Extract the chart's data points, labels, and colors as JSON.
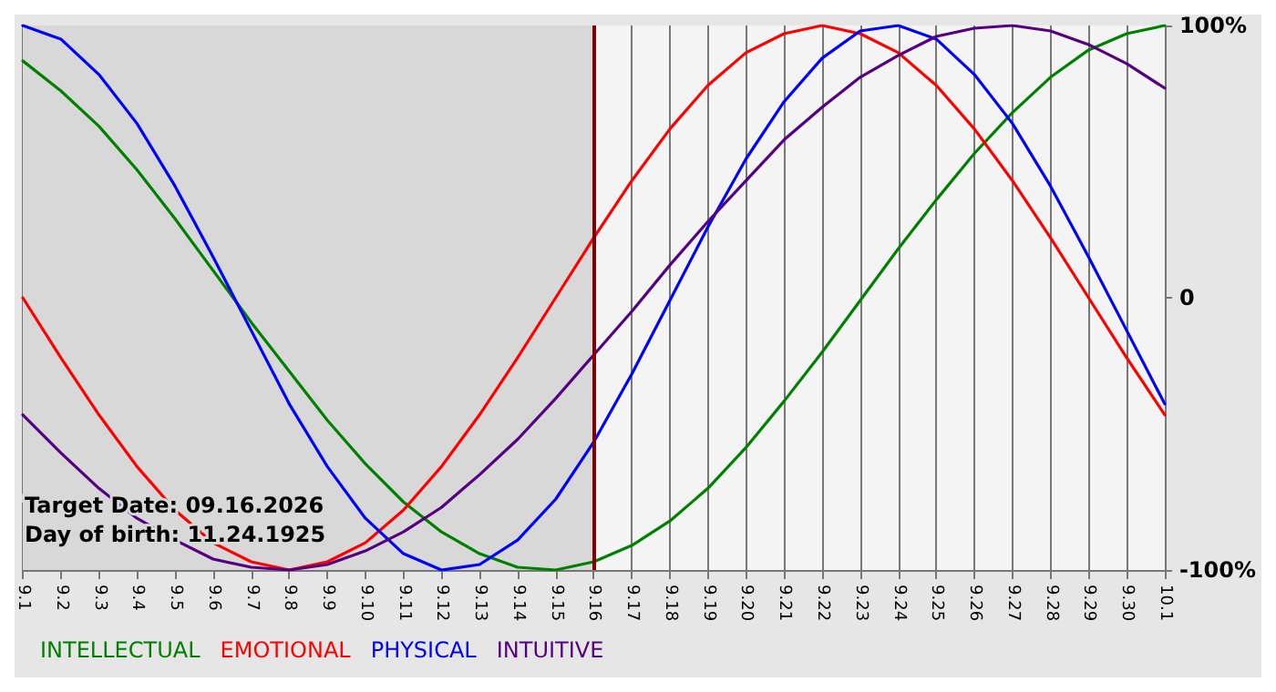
{
  "chart_data": {
    "type": "line",
    "categories": [
      "9.1",
      "9.2",
      "9.3",
      "9.4",
      "9.5",
      "9.6",
      "9.7",
      "9.8",
      "9.9",
      "9.10",
      "9.11",
      "9.12",
      "9.13",
      "9.14",
      "9.15",
      "9.16",
      "9.17",
      "9.18",
      "9.19",
      "9.20",
      "9.21",
      "9.22",
      "9.23",
      "9.24",
      "9.25",
      "9.26",
      "9.27",
      "9.28",
      "9.29",
      "9.30",
      "10.1"
    ],
    "series": [
      {
        "name": "INTELLECTUAL",
        "color": "#008000",
        "values": [
          87,
          76,
          63,
          47,
          29,
          10,
          -9,
          -27,
          -45,
          -61,
          -75,
          -86,
          -94,
          -99,
          -100,
          -97,
          -91,
          -82,
          -70,
          -55,
          -38,
          -20,
          -1,
          18,
          36,
          53,
          68,
          81,
          91,
          97,
          100
        ]
      },
      {
        "name": "EMOTIONAL",
        "color": "#ff0000",
        "values": [
          0,
          -22,
          -43,
          -62,
          -78,
          -90,
          -97,
          -100,
          -97,
          -90,
          -78,
          -62,
          -43,
          -22,
          0,
          22,
          43,
          62,
          78,
          90,
          97,
          100,
          97,
          90,
          78,
          62,
          43,
          22,
          0,
          -22,
          -43
        ]
      },
      {
        "name": "PHYSICAL",
        "color": "#0000ff",
        "values": [
          100,
          95,
          82,
          64,
          41,
          15,
          -12,
          -39,
          -62,
          -81,
          -94,
          -100,
          -98,
          -89,
          -74,
          -53,
          -28,
          -1,
          26,
          51,
          72,
          88,
          98,
          100,
          95,
          82,
          64,
          41,
          15,
          -12,
          -39
        ]
      },
      {
        "name": "INTUITIVE",
        "color": "#550080",
        "values": [
          -43,
          -57,
          -70,
          -81,
          -89,
          -96,
          -99,
          -100,
          -98,
          -93,
          -86,
          -77,
          -65,
          -52,
          -37,
          -21,
          -5,
          12,
          28,
          43,
          58,
          70,
          81,
          89,
          96,
          99,
          100,
          98,
          93,
          86,
          77
        ]
      }
    ],
    "ylim": [
      -100,
      100
    ],
    "yticks": [
      {
        "value": 100,
        "label": "100%"
      },
      0,
      {
        "value": -100,
        "label": "-100%"
      }
    ],
    "ref_lines": [
      {
        "axis": "x",
        "value": "9.16",
        "color": "#800000"
      }
    ],
    "bands": [
      {
        "axis": "x",
        "from": "9.1",
        "to": "9.16",
        "color": "#d8d8d8"
      }
    ],
    "annotations": [
      "Target Date: 09.16.2026",
      "Day of birth: 11.24.1925"
    ],
    "grid": "x",
    "legend": "bottom left",
    "marker": "none",
    "line_style": "solid"
  }
}
